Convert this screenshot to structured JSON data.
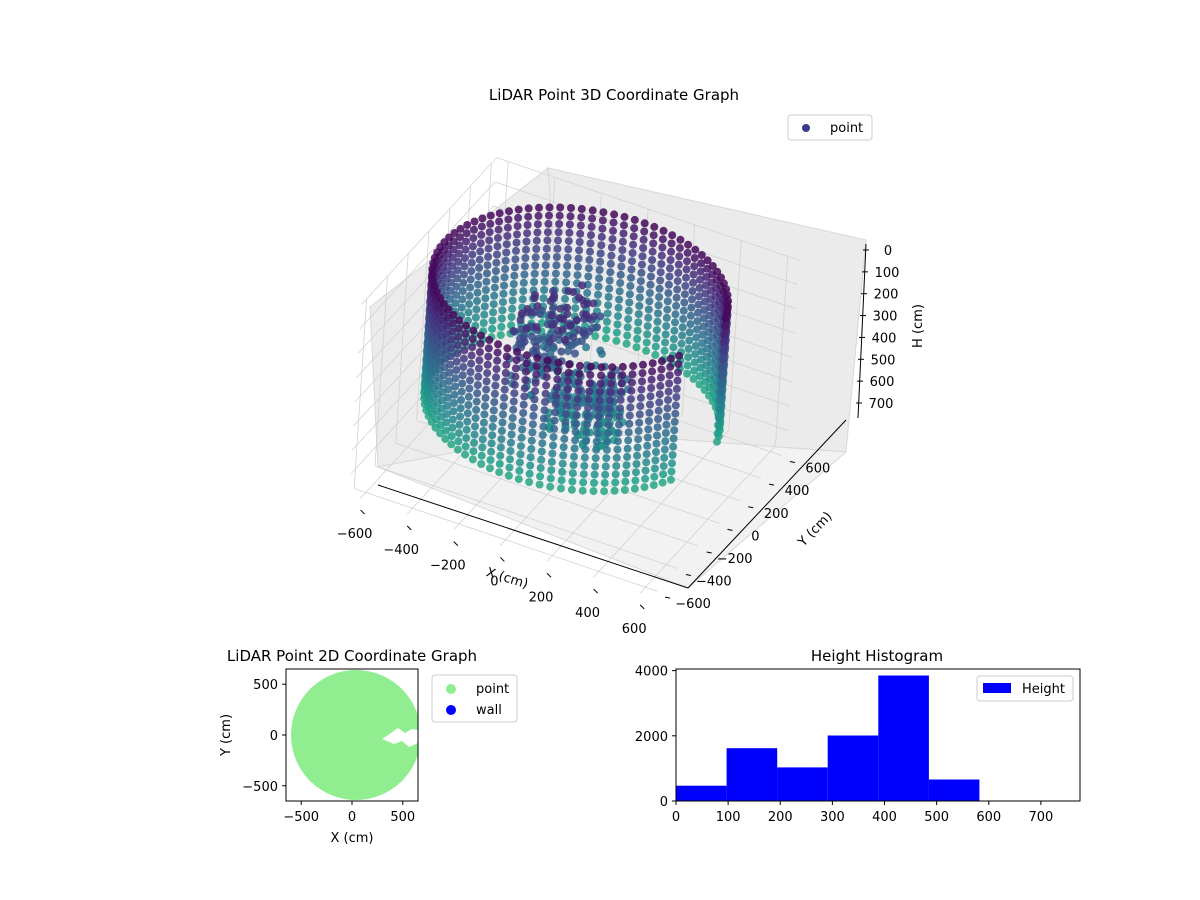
{
  "chart_data": [
    {
      "type": "scatter",
      "title": "LiDAR Point 3D Coordinate Graph",
      "xlabel": "X (cm)",
      "ylabel": "Y (cm)",
      "zlabel": "H (cm)",
      "xlim": [
        -650,
        650
      ],
      "ylim": [
        -650,
        650
      ],
      "zlim": [
        780,
        0
      ],
      "x_ticks": [
        -600,
        -400,
        -200,
        0,
        200,
        400,
        600
      ],
      "y_ticks": [
        -600,
        -400,
        -200,
        0,
        200,
        400,
        600
      ],
      "z_ticks": [
        0,
        100,
        200,
        300,
        400,
        500,
        600,
        700
      ],
      "legend": [
        {
          "label": "point",
          "color": "#3b3c84"
        }
      ],
      "legend_position": "top-right",
      "grid": true,
      "colormap": "viridis",
      "series": [
        {
          "name": "point",
          "description_free": true,
          "wall_ring": {
            "radius_min": 520,
            "radius_max": 640,
            "h_range": [
              0,
              760
            ]
          },
          "interior_clusters": [
            {
              "x": [
                -200,
                50
              ],
              "y": [
                -250,
                200
              ],
              "h": [
                100,
                400
              ]
            },
            {
              "x": [
                0,
                250
              ],
              "y": [
                -300,
                0
              ],
              "h": [
                300,
                500
              ]
            }
          ]
        }
      ]
    },
    {
      "type": "scatter",
      "title": "LiDAR Point 2D Coordinate Graph",
      "xlabel": "X (cm)",
      "ylabel": "Y (cm)",
      "xlim": [
        -650,
        650
      ],
      "ylim": [
        -650,
        650
      ],
      "x_ticks": [
        -500,
        0,
        500
      ],
      "y_ticks": [
        -500,
        0,
        500
      ],
      "legend": [
        {
          "label": "point",
          "color": "#90ee90"
        },
        {
          "label": "wall",
          "color": "#0000ff"
        }
      ],
      "legend_position": "outside-right",
      "series": [
        {
          "name": "point",
          "shape": "disk",
          "center": [
            0,
            0
          ],
          "radius": 640,
          "notch": {
            "x": [
              280,
              650
            ],
            "y": [
              -60,
              30
            ]
          }
        },
        {
          "name": "wall",
          "values": []
        }
      ]
    },
    {
      "type": "bar",
      "title": "Height Histogram",
      "xlim": [
        0,
        775
      ],
      "ylim": [
        0,
        4050
      ],
      "x_ticks": [
        0,
        100,
        200,
        300,
        400,
        500,
        600,
        700
      ],
      "y_ticks": [
        0,
        2000,
        4000
      ],
      "legend": [
        {
          "label": "Height",
          "color": "#0000ff"
        }
      ],
      "legend_position": "top-right",
      "bins": [
        {
          "x0": 0,
          "x1": 97,
          "count": 470
        },
        {
          "x0": 97,
          "x1": 194,
          "count": 1620
        },
        {
          "x0": 194,
          "x1": 291,
          "count": 1030
        },
        {
          "x0": 291,
          "x1": 388,
          "count": 2010
        },
        {
          "x0": 388,
          "x1": 485,
          "count": 3850
        },
        {
          "x0": 485,
          "x1": 582,
          "count": 660
        },
        {
          "x0": 582,
          "x1": 679,
          "count": 0
        },
        {
          "x0": 679,
          "x1": 776,
          "count": 0
        }
      ]
    }
  ]
}
